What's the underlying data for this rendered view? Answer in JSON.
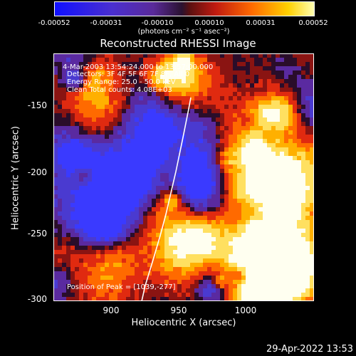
{
  "colorbar": {
    "ticks": [
      "-0.00052",
      "-0.00031",
      "-0.00010",
      "0.00010",
      "0.00031",
      "0.00052"
    ],
    "units": "(photons cm⁻² s⁻¹ asec⁻²)"
  },
  "title": "Reconstructed RHESSI Image",
  "annotations": {
    "time": "4-Mar-2003 13:54:24.000 to 13:57:00.000",
    "detectors": "Detectors: 3F 4F 5F 6F 7F 8F, All 0",
    "energy": "Energy Range: 25.0 - 50.0 keV",
    "clean": "Clean     Total counts: 4.08E+03",
    "peak": "Position of Peak = [1039,-277]"
  },
  "axes": {
    "xlabel": "Heliocentric X (arcsec)",
    "ylabel": "Heliocentric Y (arcsec)",
    "xticks": [
      "900",
      "950",
      "1000"
    ],
    "yticks": [
      "-150",
      "-200",
      "-250",
      "-300"
    ]
  },
  "timestamp": "29-Apr-2022 13:53"
}
